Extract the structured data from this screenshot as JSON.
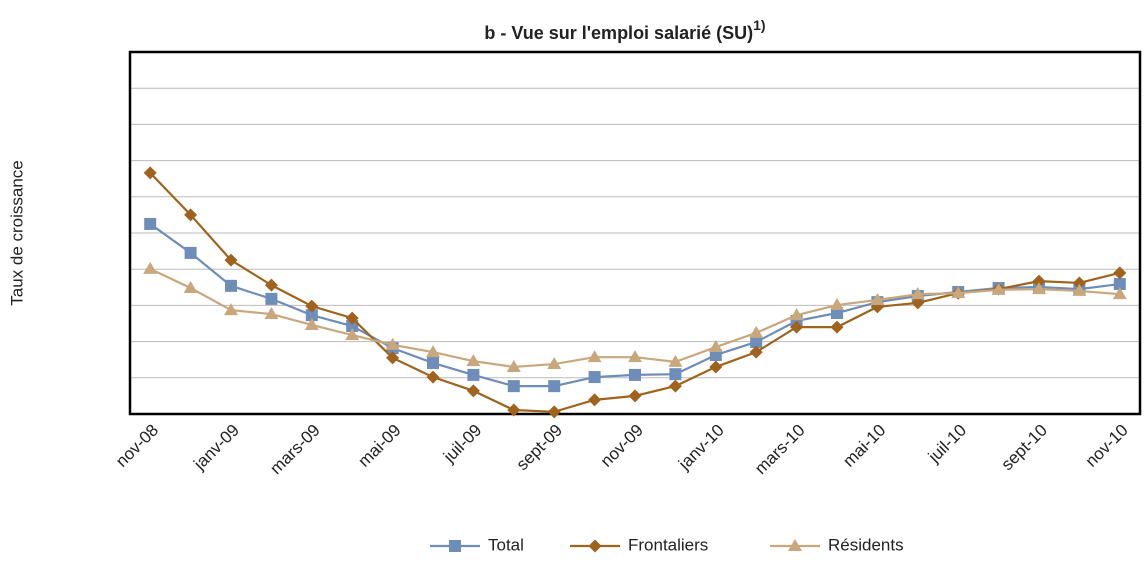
{
  "chart_data": {
    "type": "line",
    "title": "b - Vue sur l'emploi salarié (SU)",
    "title_note": "1)",
    "y_label": "Taux de croissance",
    "categories": [
      "nov-08",
      null,
      "janv-09",
      null,
      "mars-09",
      null,
      "mai-09",
      null,
      "juil-09",
      null,
      "sept-09",
      null,
      "nov-09",
      null,
      "janv-10",
      null,
      "mars-10",
      null,
      "mai-10",
      null,
      "juil-10",
      null,
      "sept-10",
      null,
      "nov-10"
    ],
    "series": [
      {
        "name": "Total",
        "color": "#6f8db9",
        "marker": "square",
        "values": [
          5.25,
          4.45,
          3.54,
          3.18,
          2.73,
          2.43,
          1.82,
          1.41,
          1.08,
          0.77,
          0.77,
          1.02,
          1.08,
          1.1,
          1.63,
          1.99,
          2.57,
          2.79,
          3.09,
          3.26,
          3.37,
          3.48,
          3.51,
          3.45,
          3.59
        ]
      },
      {
        "name": "Frontaliers",
        "color": "#a0631e",
        "marker": "diamond",
        "values": [
          6.66,
          5.5,
          4.25,
          3.56,
          2.98,
          2.65,
          1.55,
          1.02,
          0.64,
          0.11,
          0.06,
          0.39,
          0.5,
          0.77,
          1.3,
          1.71,
          2.4,
          2.4,
          2.96,
          3.07,
          3.34,
          3.45,
          3.67,
          3.62,
          3.9
        ]
      },
      {
        "name": "Résidents",
        "color": "#c9a77c",
        "marker": "triangle",
        "values": [
          4.01,
          3.48,
          2.87,
          2.76,
          2.46,
          2.18,
          1.91,
          1.71,
          1.46,
          1.3,
          1.38,
          1.57,
          1.57,
          1.44,
          1.85,
          2.24,
          2.73,
          3.01,
          3.15,
          3.31,
          3.34,
          3.43,
          3.45,
          3.4,
          3.31
        ]
      }
    ],
    "ylim": [
      0,
      10
    ],
    "yticks": [
      0,
      1,
      2,
      3,
      4,
      5,
      6,
      7,
      8,
      9,
      10
    ],
    "grid": true,
    "legend": "bottom"
  }
}
